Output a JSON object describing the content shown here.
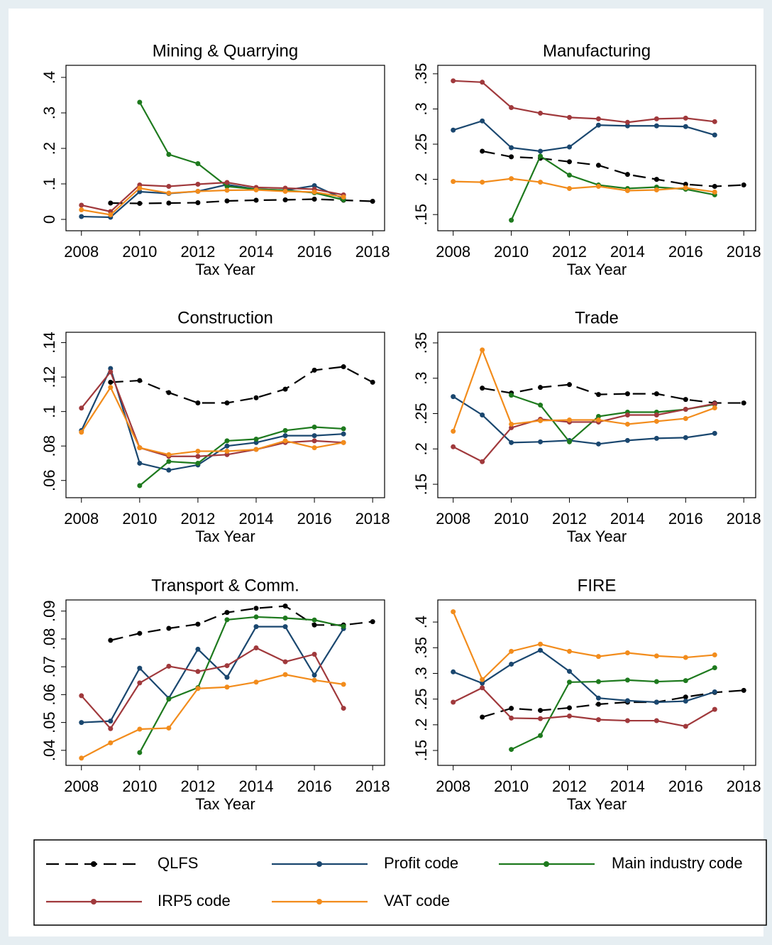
{
  "chart_data": [
    {
      "type": "line",
      "title": "Mining & Quarrying",
      "xlabel": "Tax Year",
      "x": [
        2008,
        2009,
        2010,
        2011,
        2012,
        2013,
        2014,
        2015,
        2016,
        2017,
        2018
      ],
      "xlim": [
        2007.47,
        2018.41
      ],
      "xticks": [
        2008,
        2010,
        2012,
        2014,
        2016,
        2018
      ],
      "ylim": [
        -0.032,
        0.434
      ],
      "yticks": [
        0,
        {
          "value": 0.1,
          "label": ".1"
        },
        {
          "value": 0.2,
          "label": ".2"
        },
        {
          "value": 0.3,
          "label": ".3"
        },
        {
          "value": 0.4,
          "label": ".4"
        }
      ],
      "series": [
        {
          "name": "QLFS",
          "color": "#000000",
          "line_style": "dashed",
          "values": [
            null,
            0.046,
            0.045,
            0.046,
            0.047,
            0.052,
            0.054,
            0.055,
            0.057,
            0.054,
            0.051
          ]
        },
        {
          "name": "Profit code",
          "color": "#1a476f",
          "values": [
            0.008,
            0.006,
            0.078,
            0.073,
            0.079,
            0.098,
            0.085,
            0.082,
            0.095,
            0.058,
            null
          ]
        },
        {
          "name": "Main industry code",
          "color": "#1e7a1e",
          "values": [
            null,
            null,
            0.33,
            0.183,
            0.157,
            0.093,
            0.085,
            0.082,
            0.075,
            0.055,
            null
          ]
        },
        {
          "name": "IRP5 code",
          "color": "#a0393c",
          "values": [
            0.04,
            0.022,
            0.097,
            0.093,
            0.099,
            0.104,
            0.09,
            0.088,
            0.085,
            0.069,
            null
          ]
        },
        {
          "name": "VAT code",
          "color": "#f28c1c",
          "values": [
            0.027,
            0.013,
            0.088,
            0.074,
            0.079,
            0.082,
            0.083,
            0.079,
            0.077,
            0.063,
            null
          ]
        }
      ]
    },
    {
      "type": "line",
      "title": "Manufacturing",
      "xlabel": "Tax Year",
      "x": [
        2008,
        2009,
        2010,
        2011,
        2012,
        2013,
        2014,
        2015,
        2016,
        2017,
        2018
      ],
      "xlim": [
        2007.47,
        2018.41
      ],
      "xticks": [
        2008,
        2010,
        2012,
        2014,
        2016,
        2018
      ],
      "ylim": [
        0.127,
        0.362
      ],
      "yticks": [
        {
          "value": 0.15,
          "label": ".15"
        },
        {
          "value": 0.2,
          "label": ".2"
        },
        {
          "value": 0.25,
          "label": ".25"
        },
        {
          "value": 0.3,
          "label": ".3"
        },
        {
          "value": 0.35,
          "label": ".35"
        }
      ],
      "series": [
        {
          "name": "QLFS",
          "color": "#000000",
          "line_style": "dashed",
          "values": [
            null,
            0.24,
            0.232,
            0.23,
            0.225,
            0.22,
            0.207,
            0.2,
            0.193,
            0.19,
            0.192
          ]
        },
        {
          "name": "Profit code",
          "color": "#1a476f",
          "values": [
            0.27,
            0.283,
            0.245,
            0.24,
            0.246,
            0.277,
            0.276,
            0.276,
            0.275,
            0.263,
            null
          ]
        },
        {
          "name": "Main industry code",
          "color": "#1e7a1e",
          "values": [
            null,
            null,
            0.142,
            0.233,
            0.206,
            0.192,
            0.187,
            0.189,
            0.186,
            0.178,
            null
          ]
        },
        {
          "name": "IRP5 code",
          "color": "#a0393c",
          "values": [
            0.34,
            0.338,
            0.302,
            0.294,
            0.288,
            0.286,
            0.281,
            0.286,
            0.287,
            0.282,
            null
          ]
        },
        {
          "name": "VAT code",
          "color": "#f28c1c",
          "values": [
            0.197,
            0.196,
            0.201,
            0.196,
            0.187,
            0.19,
            0.184,
            0.185,
            0.188,
            0.182,
            null
          ]
        }
      ]
    },
    {
      "type": "line",
      "title": "Construction",
      "xlabel": "Tax Year",
      "x": [
        2008,
        2009,
        2010,
        2011,
        2012,
        2013,
        2014,
        2015,
        2016,
        2017,
        2018
      ],
      "xlim": [
        2007.47,
        2018.41
      ],
      "xticks": [
        2008,
        2010,
        2012,
        2014,
        2016,
        2018
      ],
      "ylim": [
        0.05,
        0.146
      ],
      "yticks": [
        {
          "value": 0.06,
          "label": ".06"
        },
        {
          "value": 0.08,
          "label": ".08"
        },
        {
          "value": 0.1,
          "label": ".1"
        },
        {
          "value": 0.12,
          "label": ".12"
        },
        {
          "value": 0.14,
          "label": ".14"
        }
      ],
      "series": [
        {
          "name": "QLFS",
          "color": "#000000",
          "line_style": "dashed",
          "values": [
            null,
            0.117,
            0.118,
            0.111,
            0.105,
            0.105,
            0.108,
            0.113,
            0.124,
            0.126,
            0.117
          ]
        },
        {
          "name": "Profit code",
          "color": "#1a476f",
          "values": [
            0.089,
            0.125,
            0.07,
            0.066,
            0.069,
            0.08,
            0.082,
            0.086,
            0.086,
            0.087,
            null
          ]
        },
        {
          "name": "Main industry code",
          "color": "#1e7a1e",
          "values": [
            null,
            null,
            0.057,
            0.071,
            0.07,
            0.083,
            0.084,
            0.089,
            0.091,
            0.09,
            null
          ]
        },
        {
          "name": "IRP5 code",
          "color": "#a0393c",
          "values": [
            0.102,
            0.123,
            0.079,
            0.074,
            0.074,
            0.075,
            0.078,
            0.082,
            0.083,
            0.082,
            null
          ]
        },
        {
          "name": "VAT code",
          "color": "#f28c1c",
          "values": [
            0.088,
            0.114,
            0.079,
            0.075,
            0.077,
            0.077,
            0.078,
            0.083,
            0.079,
            0.082,
            null
          ]
        }
      ]
    },
    {
      "type": "line",
      "title": "Trade",
      "xlabel": "Tax Year",
      "x": [
        2008,
        2009,
        2010,
        2011,
        2012,
        2013,
        2014,
        2015,
        2016,
        2017,
        2018
      ],
      "xlim": [
        2007.47,
        2018.41
      ],
      "xticks": [
        2008,
        2010,
        2012,
        2014,
        2016,
        2018
      ],
      "ylim": [
        0.131,
        0.365
      ],
      "yticks": [
        {
          "value": 0.15,
          "label": ".15"
        },
        {
          "value": 0.2,
          "label": ".2"
        },
        {
          "value": 0.25,
          "label": ".25"
        },
        {
          "value": 0.3,
          "label": ".3"
        },
        {
          "value": 0.35,
          "label": ".35"
        }
      ],
      "series": [
        {
          "name": "QLFS",
          "color": "#000000",
          "line_style": "dashed",
          "values": [
            null,
            0.286,
            0.279,
            0.287,
            0.291,
            0.277,
            0.278,
            0.278,
            0.27,
            0.265,
            0.265
          ]
        },
        {
          "name": "Profit code",
          "color": "#1a476f",
          "values": [
            0.274,
            0.248,
            0.209,
            0.21,
            0.212,
            0.207,
            0.212,
            0.215,
            0.216,
            0.222,
            null
          ]
        },
        {
          "name": "Main industry code",
          "color": "#1e7a1e",
          "values": [
            null,
            null,
            0.276,
            0.262,
            0.21,
            0.246,
            0.252,
            0.252,
            0.256,
            0.263,
            null
          ]
        },
        {
          "name": "IRP5 code",
          "color": "#a0393c",
          "values": [
            0.203,
            0.182,
            0.23,
            0.242,
            0.238,
            0.238,
            0.248,
            0.248,
            0.256,
            0.264,
            null
          ]
        },
        {
          "name": "VAT code",
          "color": "#f28c1c",
          "values": [
            0.225,
            0.34,
            0.235,
            0.24,
            0.241,
            0.241,
            0.235,
            0.239,
            0.243,
            0.258,
            null
          ]
        }
      ]
    },
    {
      "type": "line",
      "title": "Transport & Comm.",
      "xlabel": "Tax Year",
      "x": [
        2008,
        2009,
        2010,
        2011,
        2012,
        2013,
        2014,
        2015,
        2016,
        2017,
        2018
      ],
      "xlim": [
        2007.47,
        2018.41
      ],
      "xticks": [
        2008,
        2010,
        2012,
        2014,
        2016,
        2018
      ],
      "ylim": [
        0.0346,
        0.094
      ],
      "yticks": [
        {
          "value": 0.04,
          "label": ".04"
        },
        {
          "value": 0.05,
          "label": ".05"
        },
        {
          "value": 0.06,
          "label": ".06"
        },
        {
          "value": 0.07,
          "label": ".07"
        },
        {
          "value": 0.08,
          "label": ".08"
        },
        {
          "value": 0.09,
          "label": ".09"
        }
      ],
      "series": [
        {
          "name": "QLFS",
          "color": "#000000",
          "line_style": "dashed",
          "values": [
            null,
            0.0795,
            0.082,
            0.0838,
            0.0853,
            0.0895,
            0.091,
            0.0918,
            0.085,
            0.085,
            0.0862
          ]
        },
        {
          "name": "Profit code",
          "color": "#1a476f",
          "values": [
            0.05,
            0.0505,
            0.0695,
            0.0587,
            0.0763,
            0.0662,
            0.0844,
            0.0844,
            0.067,
            0.0837,
            null
          ]
        },
        {
          "name": "Main industry code",
          "color": "#1e7a1e",
          "values": [
            null,
            null,
            0.0392,
            0.0584,
            0.0625,
            0.0869,
            0.0879,
            0.0875,
            0.0868,
            0.0845,
            null
          ]
        },
        {
          "name": "IRP5 code",
          "color": "#a0393c",
          "values": [
            0.0596,
            0.0478,
            0.0642,
            0.0702,
            0.0683,
            0.0704,
            0.0768,
            0.0718,
            0.0745,
            0.0551,
            null
          ]
        },
        {
          "name": "VAT code",
          "color": "#f28c1c",
          "values": [
            0.0372,
            0.0427,
            0.0476,
            0.048,
            0.0622,
            0.0627,
            0.0645,
            0.0672,
            0.0652,
            0.0637,
            null
          ]
        }
      ]
    },
    {
      "type": "line",
      "title": "FIRE",
      "xlabel": "Tax Year",
      "x": [
        2008,
        2009,
        2010,
        2011,
        2012,
        2013,
        2014,
        2015,
        2016,
        2017,
        2018
      ],
      "xlim": [
        2007.47,
        2018.41
      ],
      "xticks": [
        2008,
        2010,
        2012,
        2014,
        2016,
        2018
      ],
      "ylim": [
        0.121,
        0.443
      ],
      "yticks": [
        {
          "value": 0.15,
          "label": ".15"
        },
        {
          "value": 0.2,
          "label": ".2"
        },
        {
          "value": 0.25,
          "label": ".25"
        },
        {
          "value": 0.3,
          "label": ".3"
        },
        {
          "value": 0.35,
          "label": ".35"
        },
        {
          "value": 0.4,
          "label": ".4"
        }
      ],
      "series": [
        {
          "name": "QLFS",
          "color": "#000000",
          "line_style": "dashed",
          "values": [
            null,
            0.215,
            0.232,
            0.228,
            0.233,
            0.24,
            0.244,
            0.244,
            0.254,
            0.263,
            0.267
          ]
        },
        {
          "name": "Profit code",
          "color": "#1a476f",
          "values": [
            0.303,
            0.281,
            0.318,
            0.345,
            0.304,
            0.252,
            0.247,
            0.244,
            0.246,
            0.264,
            null
          ]
        },
        {
          "name": "Main industry code",
          "color": "#1e7a1e",
          "values": [
            null,
            null,
            0.152,
            0.179,
            0.283,
            0.284,
            0.287,
            0.284,
            0.286,
            0.311,
            null
          ]
        },
        {
          "name": "IRP5 code",
          "color": "#a0393c",
          "values": [
            0.244,
            0.272,
            0.213,
            0.212,
            0.217,
            0.21,
            0.208,
            0.208,
            0.197,
            0.23,
            null
          ]
        },
        {
          "name": "VAT code",
          "color": "#f28c1c",
          "values": [
            0.42,
            0.288,
            0.343,
            0.357,
            0.343,
            0.333,
            0.34,
            0.334,
            0.331,
            0.336,
            null
          ]
        }
      ]
    }
  ]
}
